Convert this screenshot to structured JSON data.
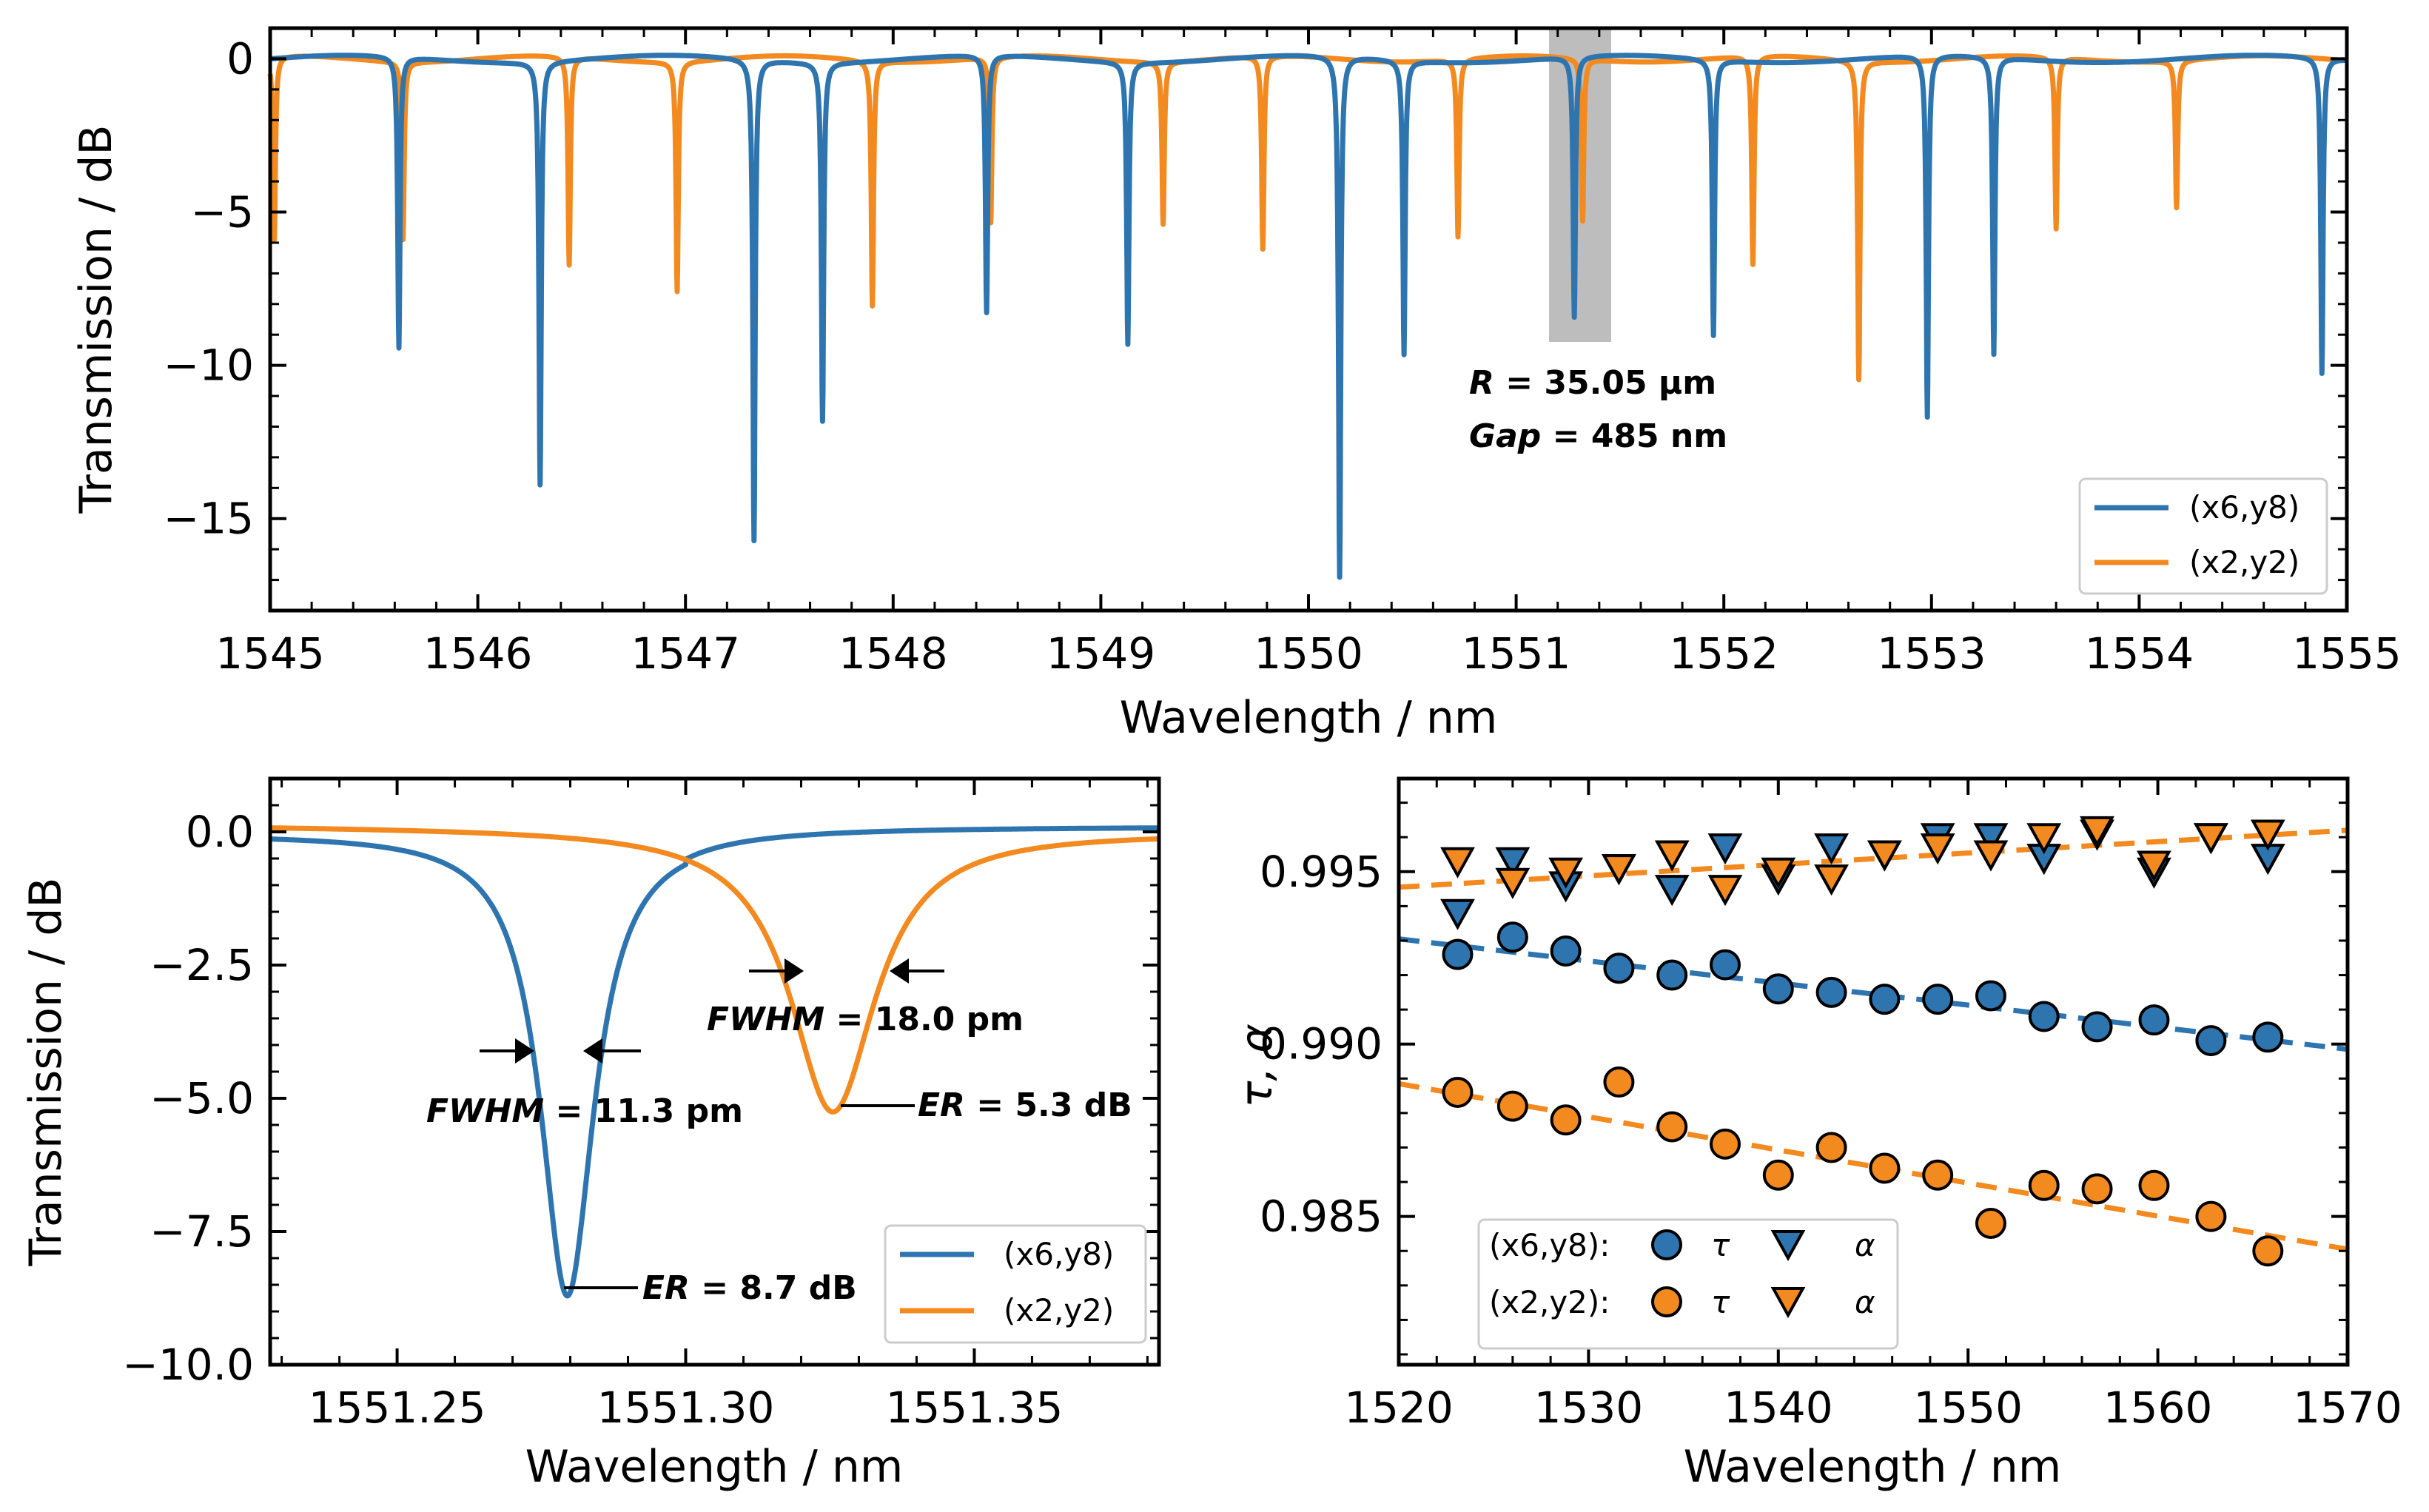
{
  "colors": {
    "blue": "#2e75b0",
    "orange": "#f28a1f",
    "highlight": "#bdbdbd"
  },
  "chart_data": [
    {
      "type": "line",
      "panel": "top",
      "xlabel": "Wavelength / nm",
      "ylabel": "Transmission / dB",
      "xlim": [
        1545,
        1555
      ],
      "ylim": [
        -18,
        1
      ],
      "xticks": [
        "1545",
        "1546",
        "1547",
        "1548",
        "1549",
        "1550",
        "1551",
        "1552",
        "1553",
        "1554",
        "1555"
      ],
      "yticks": [
        "0",
        "−5",
        "−10",
        "−15"
      ],
      "series": [
        {
          "name": "(x6,y8)",
          "color": "blue",
          "dips": [
            [
              1545.62,
              -9.5
            ],
            [
              1546.3,
              -13.8
            ],
            [
              1547.33,
              -15.7
            ],
            [
              1547.66,
              -11.7
            ],
            [
              1548.45,
              -8.4
            ],
            [
              1549.13,
              -9.2
            ],
            [
              1550.15,
              -17.0
            ],
            [
              1550.46,
              -9.6
            ],
            [
              1551.28,
              -8.5
            ],
            [
              1551.95,
              -9.0
            ],
            [
              1552.98,
              -11.8
            ],
            [
              1553.3,
              -9.7
            ],
            [
              1554.88,
              -10.3
            ]
          ]
        },
        {
          "name": "(x2,y2)",
          "color": "orange",
          "dips": [
            [
              1545.02,
              -6.0
            ],
            [
              1545.64,
              -5.8
            ],
            [
              1546.44,
              -6.8
            ],
            [
              1546.96,
              -7.5
            ],
            [
              1547.9,
              -8.0
            ],
            [
              1548.47,
              -5.4
            ],
            [
              1549.3,
              -5.3
            ],
            [
              1549.78,
              -6.3
            ],
            [
              1550.72,
              -5.8
            ],
            [
              1551.32,
              -5.3
            ],
            [
              1552.14,
              -6.8
            ],
            [
              1552.65,
              -10.4
            ],
            [
              1553.6,
              -5.6
            ],
            [
              1554.18,
              -4.8
            ]
          ]
        }
      ],
      "highlight_x": [
        1551.15,
        1551.45
      ],
      "annotation": {
        "r_label": "R",
        "r_value": " = 35.05 µm",
        "gap_label": "Gap",
        "gap_value": " = 485 nm"
      },
      "legend": [
        "(x6,y8)",
        "(x2,y2)"
      ]
    },
    {
      "type": "line",
      "panel": "bottom-left",
      "xlabel": "Wavelength / nm",
      "ylabel": "Transmission / dB",
      "xlim": [
        1551.228,
        1551.382
      ],
      "ylim": [
        -10,
        1
      ],
      "xticks": [
        "1551.25",
        "1551.30",
        "1551.35"
      ],
      "yticks": [
        "0.0",
        "−2.5",
        "−5.0",
        "−7.5",
        "−10.0"
      ],
      "series": [
        {
          "name": "(x6,y8)",
          "color": "blue",
          "center": 1551.2795,
          "fwhm_pm": 11.3,
          "er_db": 8.7
        },
        {
          "name": "(x2,y2)",
          "color": "orange",
          "center": 1551.3255,
          "fwhm_pm": 18.0,
          "er_db": 5.3
        }
      ],
      "annotations": {
        "fwhm_blue": {
          "label": "FWHM",
          "value": " = 11.3 pm"
        },
        "er_blue": {
          "label": "ER",
          "value": " = 8.7 dB"
        },
        "fwhm_orange": {
          "label": "FWHM",
          "value": " = 18.0 pm"
        },
        "er_orange": {
          "label": "ER",
          "value": " = 5.3 dB"
        }
      },
      "legend": [
        "(x6,y8)",
        "(x2,y2)"
      ]
    },
    {
      "type": "scatter",
      "panel": "bottom-right",
      "xlabel": "Wavelength / nm",
      "ylabel": "τ, α",
      "xlim": [
        1520,
        1570
      ],
      "ylim": [
        0.9807,
        0.9977
      ],
      "xticks": [
        "1520",
        "1530",
        "1540",
        "1550",
        "1560",
        "1570"
      ],
      "yticks": [
        "0.995",
        "0.990",
        "0.985"
      ],
      "series": [
        {
          "name": "(x6,y8) τ",
          "marker": "circle",
          "color": "blue",
          "x": [
            1523.1,
            1526.0,
            1528.8,
            1531.6,
            1534.4,
            1537.2,
            1540.0,
            1542.8,
            1545.6,
            1548.4,
            1551.2,
            1554.0,
            1556.8,
            1559.8,
            1562.8,
            1565.8
          ],
          "y": [
            0.9926,
            0.9931,
            0.9927,
            0.9922,
            0.992,
            0.9923,
            0.9916,
            0.9915,
            0.9913,
            0.9913,
            0.9914,
            0.9908,
            0.9905,
            0.9907,
            0.9901,
            0.9902
          ]
        },
        {
          "name": "(x6,y8) α",
          "marker": "triangle",
          "color": "blue",
          "x": [
            1523.1,
            1526.0,
            1528.8,
            1531.6,
            1534.4,
            1537.2,
            1540.0,
            1542.8,
            1545.6,
            1548.4,
            1551.2,
            1554.0,
            1556.8,
            1559.8,
            1562.8,
            1565.8
          ],
          "y": [
            0.9938,
            0.9953,
            0.9946,
            0.9951,
            0.9945,
            0.9957,
            0.9948,
            0.9957,
            0.9955,
            0.996,
            0.996,
            0.9954,
            0.9961,
            0.995,
            0.996,
            0.9954
          ]
        },
        {
          "name": "(x2,y2) τ",
          "marker": "circle",
          "color": "orange",
          "x": [
            1523.1,
            1526.0,
            1528.8,
            1531.6,
            1534.4,
            1537.2,
            1540.0,
            1542.8,
            1545.6,
            1548.4,
            1551.2,
            1554.0,
            1556.8,
            1559.8,
            1562.8,
            1565.8
          ],
          "y": [
            0.9886,
            0.9882,
            0.9878,
            0.9889,
            0.9876,
            0.9871,
            0.9862,
            0.987,
            0.9864,
            0.9862,
            0.9848,
            0.9859,
            0.9858,
            0.9859,
            0.985,
            0.984
          ]
        },
        {
          "name": "(x2,y2) α",
          "marker": "triangle",
          "color": "orange",
          "x": [
            1523.1,
            1526.0,
            1528.8,
            1531.6,
            1534.4,
            1537.2,
            1540.0,
            1542.8,
            1545.6,
            1548.4,
            1551.2,
            1554.0,
            1556.8,
            1559.8,
            1562.8,
            1565.8
          ],
          "y": [
            0.9953,
            0.9947,
            0.995,
            0.9951,
            0.9955,
            0.9945,
            0.995,
            0.9948,
            0.9955,
            0.9957,
            0.9955,
            0.996,
            0.9962,
            0.9952,
            0.996,
            0.9961
          ]
        }
      ],
      "fits": [
        {
          "color": "orange",
          "x": [
            1520,
            1570
          ],
          "y": [
            0.99455,
            0.9962
          ]
        },
        {
          "color": "blue",
          "x": [
            1520,
            1570
          ],
          "y": [
            0.99305,
            0.98985
          ]
        },
        {
          "color": "orange",
          "x": [
            1520,
            1570
          ],
          "y": [
            0.98885,
            0.98405
          ]
        }
      ],
      "legend": {
        "row1_label": "(x6,y8):",
        "row2_label": "(x2,y2):",
        "tau": "τ",
        "alpha": "α"
      }
    }
  ]
}
